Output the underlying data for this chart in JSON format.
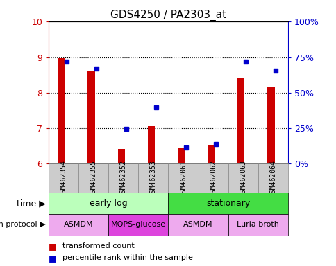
{
  "title": "GDS4250 / PA2303_at",
  "samples": [
    "GSM462354",
    "GSM462355",
    "GSM462352",
    "GSM462353",
    "GSM462061",
    "GSM462062",
    "GSM462063",
    "GSM462064"
  ],
  "red_values": [
    8.98,
    8.6,
    6.42,
    7.05,
    6.44,
    6.52,
    8.42,
    8.18
  ],
  "blue_values": [
    8.88,
    8.68,
    6.98,
    7.58,
    6.46,
    6.56,
    8.88,
    8.62
  ],
  "ylim_left": [
    6,
    10
  ],
  "ylim_right": [
    0,
    100
  ],
  "yticks_left": [
    6,
    7,
    8,
    9,
    10
  ],
  "yticks_right": [
    0,
    25,
    50,
    75,
    100
  ],
  "yticklabels_right": [
    "0%",
    "25%",
    "50%",
    "75%",
    "100%"
  ],
  "red_color": "#cc0000",
  "blue_color": "#0000cc",
  "time_groups": [
    {
      "label": "early log",
      "start": 0,
      "end": 4,
      "color": "#bbffbb"
    },
    {
      "label": "stationary",
      "start": 4,
      "end": 8,
      "color": "#44dd44"
    }
  ],
  "protocol_groups": [
    {
      "label": "ASMDM",
      "start": 0,
      "end": 2,
      "color": "#eeaaee"
    },
    {
      "label": "MOPS-glucose",
      "start": 2,
      "end": 4,
      "color": "#dd44dd"
    },
    {
      "label": "ASMDM",
      "start": 4,
      "end": 6,
      "color": "#eeaaee"
    },
    {
      "label": "Luria broth",
      "start": 6,
      "end": 8,
      "color": "#eeaaee"
    }
  ],
  "time_label": "time",
  "protocol_label": "growth protocol",
  "legend_red": "transformed count",
  "legend_blue": "percentile rank within the sample",
  "base_value": 6,
  "sample_bg": "#cccccc",
  "sample_border": "#888888"
}
